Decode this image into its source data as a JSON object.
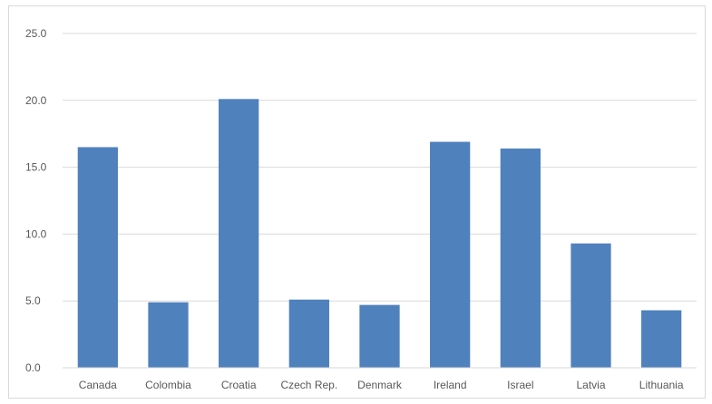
{
  "chart_data": {
    "type": "bar",
    "categories": [
      "Canada",
      "Colombia",
      "Croatia",
      "Czech Rep.",
      "Denmark",
      "Ireland",
      "Israel",
      "Latvia",
      "Lithuania"
    ],
    "values": [
      16.5,
      4.9,
      20.1,
      5.1,
      4.7,
      16.9,
      16.4,
      9.3,
      4.3
    ],
    "title": "",
    "xlabel": "",
    "ylabel": "",
    "ylim": [
      0,
      25
    ],
    "yticks": [
      "0.0",
      "5.0",
      "10.0",
      "15.0",
      "20.0",
      "25.0"
    ],
    "grid": true,
    "legend": "none",
    "bar_color": "#4f81bd",
    "grid_color": "#d9d9d9"
  }
}
